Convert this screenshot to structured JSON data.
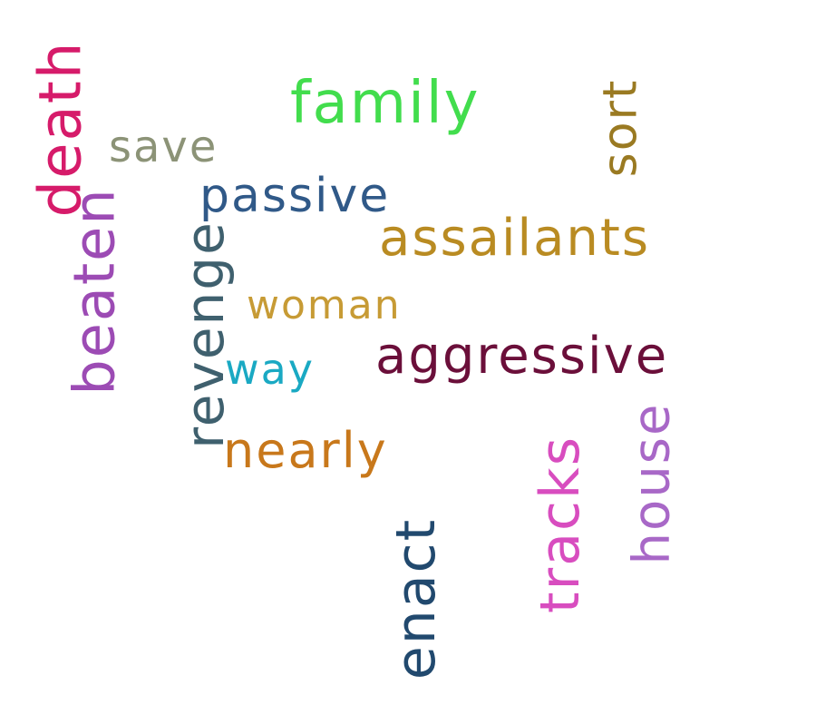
{
  "words": [
    {
      "text": "death",
      "color": "#d61b6a"
    },
    {
      "text": "save",
      "color": "#8c9377"
    },
    {
      "text": "family",
      "color": "#42dd4d"
    },
    {
      "text": "sort",
      "color": "#9a7a22"
    },
    {
      "text": "passive",
      "color": "#305988"
    },
    {
      "text": "beaten",
      "color": "#9c4bb4"
    },
    {
      "text": "assailants",
      "color": "#b98b22"
    },
    {
      "text": "revenge",
      "color": "#3f606e"
    },
    {
      "text": "woman",
      "color": "#c79b35"
    },
    {
      "text": "way",
      "color": "#1aa9c3"
    },
    {
      "text": "aggressive",
      "color": "#6b0f3a"
    },
    {
      "text": "nearly",
      "color": "#c8781b"
    },
    {
      "text": "tracks",
      "color": "#d84dbf"
    },
    {
      "text": "house",
      "color": "#a868c7"
    },
    {
      "text": "enact",
      "color": "#21496e"
    }
  ]
}
